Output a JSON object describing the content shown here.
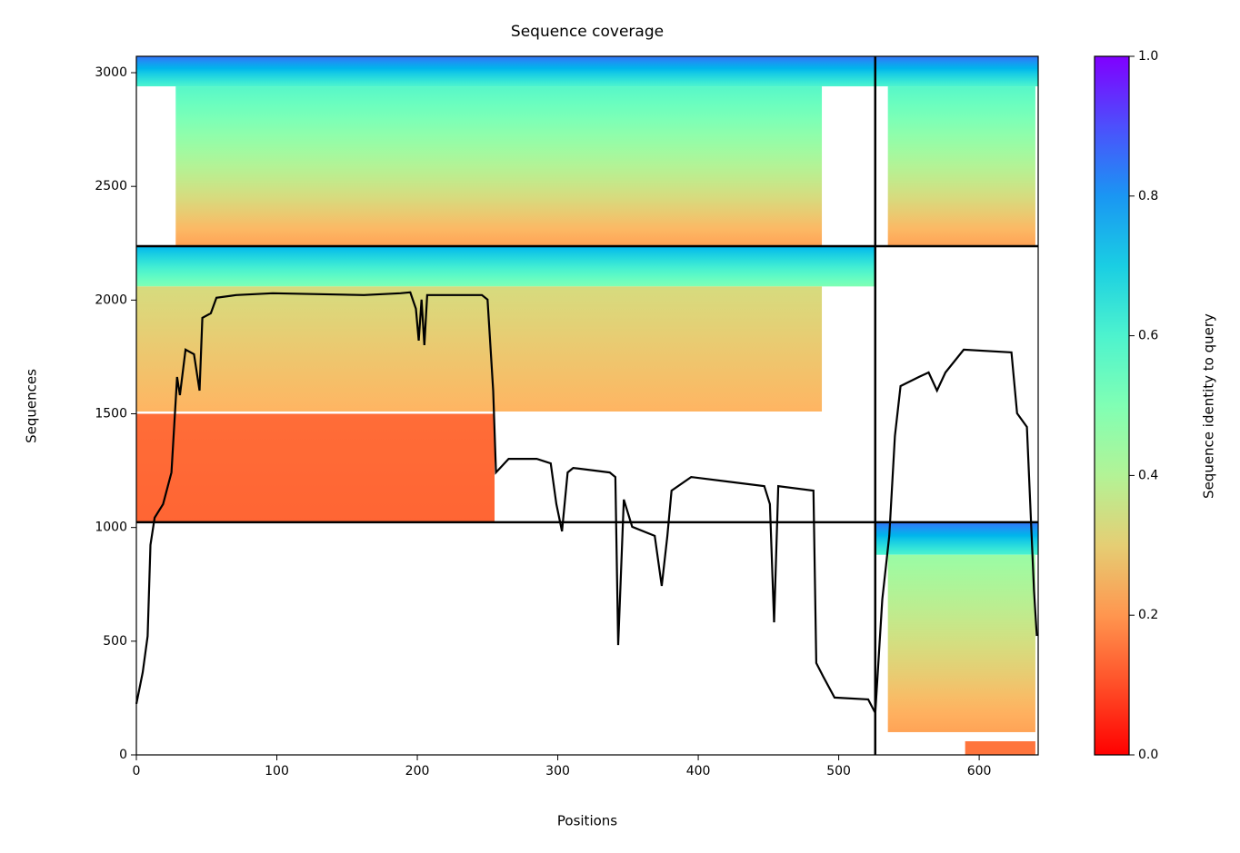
{
  "chart_data": {
    "type": "coverage",
    "title": "Sequence coverage",
    "xlabel": "Positions",
    "ylabel": "Sequences",
    "colorbar_label": "Sequence identity to query",
    "xlim": [
      0,
      642
    ],
    "ylim": [
      0,
      3072
    ],
    "xticks": [
      0,
      100,
      200,
      300,
      400,
      500,
      600
    ],
    "yticks": [
      0,
      500,
      1000,
      1500,
      2000,
      2500,
      3000
    ],
    "clim": [
      0,
      1
    ],
    "cticks": [
      {
        "value": 0,
        "label": "0.0"
      },
      {
        "value": 0.2,
        "label": "0.2"
      },
      {
        "value": 0.4,
        "label": "0.4"
      },
      {
        "value": 0.6,
        "label": "0.6"
      },
      {
        "value": 0.8,
        "label": "0.8"
      },
      {
        "value": 1,
        "label": "1.0"
      }
    ],
    "colormap": "rainbow_r",
    "line_color": "#000000",
    "boundaries": {
      "x": [
        526
      ],
      "y": [
        1023,
        2237
      ]
    },
    "blocks": [
      {
        "x": [
          0,
          526
        ],
        "y": [
          2940,
          3072
        ],
        "identity": [
          0.6,
          0.85
        ]
      },
      {
        "x": [
          28,
          488
        ],
        "y": [
          2240,
          2940
        ],
        "identity": [
          0.22,
          0.58
        ]
      },
      {
        "x": [
          526,
          642
        ],
        "y": [
          2940,
          3072
        ],
        "identity": [
          0.6,
          0.85
        ]
      },
      {
        "x": [
          535,
          640
        ],
        "y": [
          2240,
          2940
        ],
        "identity": [
          0.22,
          0.58
        ]
      },
      {
        "x": [
          0,
          526
        ],
        "y": [
          2060,
          2237
        ],
        "identity": [
          0.5,
          0.75
        ]
      },
      {
        "x": [
          0,
          488
        ],
        "y": [
          1510,
          2060
        ],
        "identity": [
          0.25,
          0.33
        ]
      },
      {
        "x": [
          0,
          255
        ],
        "y": [
          1023,
          1500
        ],
        "identity": [
          0.13,
          0.14
        ]
      },
      {
        "x": [
          526,
          642
        ],
        "y": [
          880,
          1023
        ],
        "identity": [
          0.6,
          0.85
        ]
      },
      {
        "x": [
          535,
          640
        ],
        "y": [
          100,
          880
        ],
        "identity": [
          0.22,
          0.45
        ]
      },
      {
        "x": [
          590,
          640
        ],
        "y": [
          0,
          60
        ],
        "identity": [
          0.15,
          0.15
        ]
      }
    ],
    "coverage": {
      "x": [
        0,
        4.5,
        8,
        10,
        13,
        19,
        25,
        29,
        31,
        35,
        41,
        45,
        47,
        53,
        57,
        71,
        97,
        162,
        188,
        195,
        199,
        201,
        203,
        205,
        207,
        246,
        250,
        254,
        256,
        265,
        285,
        295,
        299,
        303,
        307,
        311,
        337,
        341,
        343,
        347,
        353,
        369,
        374,
        378,
        381,
        395,
        421,
        447,
        451,
        454,
        457,
        482,
        484,
        489,
        497,
        521,
        526,
        531,
        536,
        540,
        544,
        557,
        564,
        570,
        576,
        589,
        623,
        627,
        634,
        639,
        641
      ],
      "y": [
        224,
        363,
        523,
        923,
        1043,
        1103,
        1242,
        1662,
        1582,
        1782,
        1762,
        1602,
        1922,
        1942,
        2010,
        2022,
        2030,
        2022,
        2030,
        2034,
        1962,
        1822,
        2002,
        1802,
        2022,
        2022,
        2002,
        1602,
        1242,
        1302,
        1302,
        1282,
        1103,
        983,
        1242,
        1262,
        1242,
        1222,
        483,
        1123,
        1003,
        963,
        743,
        963,
        1162,
        1222,
        1202,
        1182,
        1103,
        583,
        1182,
        1162,
        404,
        344,
        252,
        244,
        184,
        683,
        963,
        1402,
        1622,
        1662,
        1682,
        1602,
        1682,
        1782,
        1770,
        1502,
        1442,
        723,
        523
      ]
    }
  }
}
